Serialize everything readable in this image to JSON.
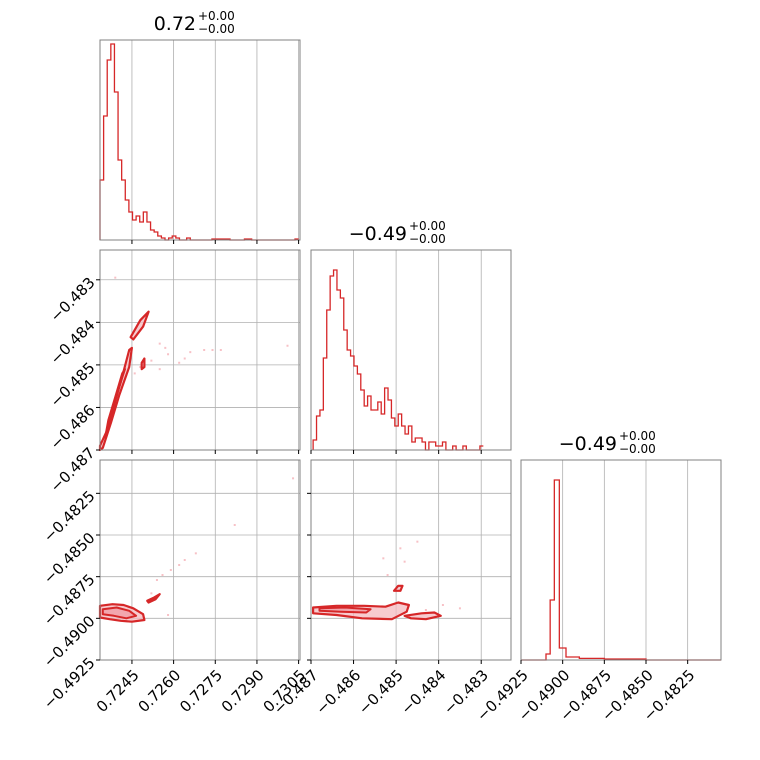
{
  "colors": {
    "accent": "#d62728",
    "fill": "#f4b9bf",
    "grid": "#b0b0b0",
    "frame": "#808080"
  },
  "chart_data": {
    "type": "corner",
    "params": [
      {
        "title": {
          "main": "0.72",
          "plus": "+0.00",
          "minus": "−0.00"
        }
      },
      {
        "title": {
          "main": "−0.49",
          "plus": "+0.00",
          "minus": "−0.00"
        }
      },
      {
        "title": {
          "main": "−0.49",
          "plus": "+0.00",
          "minus": "−0.00"
        }
      }
    ],
    "axes": {
      "p0": {
        "range": [
          0.72335,
          0.73055
        ],
        "ticks": [
          0.7245,
          0.726,
          0.7275,
          0.729,
          0.7305
        ],
        "tick_labels": [
          "0.7245",
          "0.7260",
          "0.7275",
          "0.7290",
          "0.7305"
        ]
      },
      "p1": {
        "range": [
          -0.487,
          -0.4823
        ],
        "ticks": [
          -0.487,
          -0.486,
          -0.485,
          -0.484,
          -0.483
        ],
        "tick_labels": [
          "−0.487",
          "−0.486",
          "−0.485",
          "−0.484",
          "−0.483"
        ]
      },
      "p2": {
        "range": [
          -0.4925,
          -0.4805
        ],
        "ticks": [
          -0.4925,
          -0.49,
          -0.4875,
          -0.485,
          -0.4825
        ],
        "tick_labels": [
          "−0.4925",
          "−0.4900",
          "−0.4875",
          "−0.4850",
          "−0.4825"
        ]
      }
    },
    "hist0": {
      "x_start": 0.72335,
      "bin_width": 0.00013,
      "values": [
        0.3,
        0.62,
        0.9,
        0.98,
        0.74,
        0.4,
        0.3,
        0.2,
        0.14,
        0.1,
        0.12,
        0.09,
        0.14,
        0.09,
        0.05,
        0.04,
        0.02,
        0.01,
        0.0,
        0.01,
        0.02,
        0.01,
        0.0,
        0.0,
        0.01,
        0.0,
        0.0,
        0.0,
        0.0,
        0.0,
        0.0,
        0.005,
        0.005,
        0.005,
        0.005,
        0.005,
        0.0,
        0.0,
        0.0,
        0.0,
        0.005,
        0.005,
        0.0,
        0.0,
        0.0,
        0.0,
        0.0,
        0.0,
        0.0,
        0.0,
        0.0,
        0.0,
        0.0,
        0.0,
        0.005
      ]
    },
    "hist1": {
      "x_start": -0.48695,
      "bin_width": 8e-05,
      "values": [
        0.05,
        0.17,
        0.2,
        0.46,
        0.7,
        0.87,
        0.9,
        0.8,
        0.76,
        0.6,
        0.5,
        0.47,
        0.42,
        0.38,
        0.3,
        0.22,
        0.27,
        0.2,
        0.2,
        0.24,
        0.18,
        0.31,
        0.25,
        0.16,
        0.12,
        0.18,
        0.12,
        0.08,
        0.12,
        0.04,
        0.06,
        0.06,
        0.04,
        0.0,
        0.04,
        0.04,
        0.02,
        0.02,
        0.04,
        0.0,
        0.0,
        0.02,
        0.0,
        0.0,
        0.02,
        0.0,
        0.0,
        0.0,
        0.0,
        0.02
      ]
    },
    "hist2": {
      "bins": [
        {
          "x": -0.4925,
          "w": 0.0015,
          "v": 0.0
        },
        {
          "x": -0.491,
          "w": 0.00025,
          "v": 0.03
        },
        {
          "x": -0.49075,
          "w": 0.00025,
          "v": 0.3
        },
        {
          "x": -0.4905,
          "w": 0.0003,
          "v": 0.9
        },
        {
          "x": -0.4902,
          "w": 0.0004,
          "v": 0.06
        },
        {
          "x": -0.4898,
          "w": 0.0008,
          "v": 0.015
        },
        {
          "x": -0.489,
          "w": 0.0015,
          "v": 0.008
        },
        {
          "x": -0.4875,
          "w": 0.0025,
          "v": 0.005
        },
        {
          "x": -0.485,
          "w": 0.0045,
          "v": 0.0
        }
      ]
    },
    "contours": {
      "p0_p1": [
        {
          "level": "outer",
          "points": [
            [
              0.72335,
              -0.487
            ],
            [
              0.72345,
              -0.48695
            ],
            [
              0.72375,
              -0.48635
            ],
            [
              0.72405,
              -0.4857
            ],
            [
              0.7244,
              -0.48505
            ],
            [
              0.7245,
              -0.4846
            ],
            [
              0.7244,
              -0.48465
            ],
            [
              0.7241,
              -0.4854
            ],
            [
              0.7238,
              -0.48605
            ],
            [
              0.7236,
              -0.48655
            ],
            [
              0.72335,
              -0.4869
            ]
          ]
        },
        {
          "level": "inner",
          "points": [
            [
              0.72355,
              -0.48665
            ],
            [
              0.7238,
              -0.4861
            ],
            [
              0.72405,
              -0.4855
            ],
            [
              0.72425,
              -0.4851
            ],
            [
              0.72415,
              -0.4852
            ],
            [
              0.7239,
              -0.48575
            ],
            [
              0.72365,
              -0.4863
            ]
          ]
        },
        {
          "level": "outer",
          "points": [
            [
              0.72445,
              -0.48435
            ],
            [
              0.7248,
              -0.48395
            ],
            [
              0.7251,
              -0.48375
            ],
            [
              0.7249,
              -0.4841
            ],
            [
              0.72455,
              -0.4844
            ]
          ]
        },
        {
          "level": "outer",
          "points": [
            [
              0.72485,
              -0.48495
            ],
            [
              0.72495,
              -0.48485
            ],
            [
              0.72495,
              -0.48505
            ],
            [
              0.72485,
              -0.4851
            ]
          ]
        }
      ],
      "p0_p2": [
        {
          "level": "outer",
          "points": [
            [
              0.72335,
              -0.48925
            ],
            [
              0.7238,
              -0.48915
            ],
            [
              0.7242,
              -0.4892
            ],
            [
              0.72455,
              -0.4894
            ],
            [
              0.7249,
              -0.48975
            ],
            [
              0.72495,
              -0.4901
            ],
            [
              0.7245,
              -0.4902
            ],
            [
              0.7241,
              -0.49015
            ],
            [
              0.7237,
              -0.49005
            ],
            [
              0.72335,
              -0.48995
            ]
          ]
        },
        {
          "level": "inner",
          "points": [
            [
              0.72345,
              -0.48945
            ],
            [
              0.72395,
              -0.48935
            ],
            [
              0.7244,
              -0.48955
            ],
            [
              0.72465,
              -0.48985
            ],
            [
              0.7243,
              -0.49
            ],
            [
              0.72385,
              -0.48985
            ],
            [
              0.72345,
              -0.48975
            ]
          ]
        },
        {
          "level": "outer",
          "points": [
            [
              0.72505,
              -0.48895
            ],
            [
              0.7253,
              -0.48875
            ],
            [
              0.7255,
              -0.48855
            ],
            [
              0.72535,
              -0.48885
            ],
            [
              0.7251,
              -0.48905
            ]
          ]
        }
      ],
      "p1_p2": [
        {
          "level": "outer",
          "points": [
            [
              -0.48695,
              -0.48935
            ],
            [
              -0.4864,
              -0.48925
            ],
            [
              -0.48575,
              -0.48925
            ],
            [
              -0.48525,
              -0.4893
            ],
            [
              -0.48495,
              -0.48905
            ],
            [
              -0.4847,
              -0.4892
            ],
            [
              -0.48475,
              -0.4896
            ],
            [
              -0.4851,
              -0.49005
            ],
            [
              -0.4858,
              -0.49
            ],
            [
              -0.4864,
              -0.4898
            ],
            [
              -0.48695,
              -0.4897
            ]
          ]
        },
        {
          "level": "inner",
          "points": [
            [
              -0.4868,
              -0.4894
            ],
            [
              -0.4862,
              -0.48935
            ],
            [
              -0.4856,
              -0.48945
            ],
            [
              -0.4857,
              -0.48965
            ],
            [
              -0.4863,
              -0.4896
            ],
            [
              -0.4868,
              -0.48955
            ]
          ]
        },
        {
          "level": "outer",
          "points": [
            [
              -0.4848,
              -0.48985
            ],
            [
              -0.4844,
              -0.4897
            ],
            [
              -0.4841,
              -0.48965
            ],
            [
              -0.48395,
              -0.48985
            ],
            [
              -0.4843,
              -0.49005
            ],
            [
              -0.48465,
              -0.49
            ]
          ]
        },
        {
          "level": "outer",
          "points": [
            [
              -0.48505,
              -0.48835
            ],
            [
              -0.48495,
              -0.48805
            ],
            [
              -0.48485,
              -0.48805
            ],
            [
              -0.4849,
              -0.48835
            ]
          ]
        }
      ]
    },
    "scatter": {
      "p0_p1": [
        [
          0.7239,
          -0.48295
        ],
        [
          0.7258,
          -0.48475
        ],
        [
          0.7262,
          -0.48495
        ],
        [
          0.7264,
          -0.48485
        ],
        [
          0.7271,
          -0.48465
        ],
        [
          0.7274,
          -0.48465
        ],
        [
          0.7248,
          -0.48505
        ],
        [
          0.7252,
          -0.4849
        ],
        [
          0.7255,
          -0.4851
        ],
        [
          0.7266,
          -0.4847
        ],
        [
          0.7301,
          -0.48455
        ],
        [
          0.7255,
          -0.4845
        ],
        [
          0.7257,
          -0.4846
        ],
        [
          0.7277,
          -0.48465
        ],
        [
          0.7246,
          -0.4852
        ]
      ],
      "p0_p2": [
        [
          0.7303,
          -0.4816
        ],
        [
          0.7264,
          -0.4865
        ],
        [
          0.7268,
          -0.4861
        ],
        [
          0.7262,
          -0.4868
        ],
        [
          0.7259,
          -0.4871
        ],
        [
          0.7256,
          -0.4874
        ],
        [
          0.7254,
          -0.4877
        ],
        [
          0.7282,
          -0.4844
        ],
        [
          0.7252,
          -0.4885
        ],
        [
          0.7258,
          -0.4898
        ]
      ],
      "p1_p2": [
        [
          -0.4852,
          -0.4874
        ],
        [
          -0.4848,
          -0.4866
        ],
        [
          -0.4845,
          -0.4854
        ],
        [
          -0.4853,
          -0.4864
        ],
        [
          -0.4849,
          -0.4858
        ],
        [
          -0.4843,
          -0.4895
        ],
        [
          -0.4839,
          -0.4892
        ],
        [
          -0.4835,
          -0.4894
        ],
        [
          -0.4861,
          -0.4893
        ],
        [
          -0.4856,
          -0.4893
        ]
      ]
    }
  }
}
